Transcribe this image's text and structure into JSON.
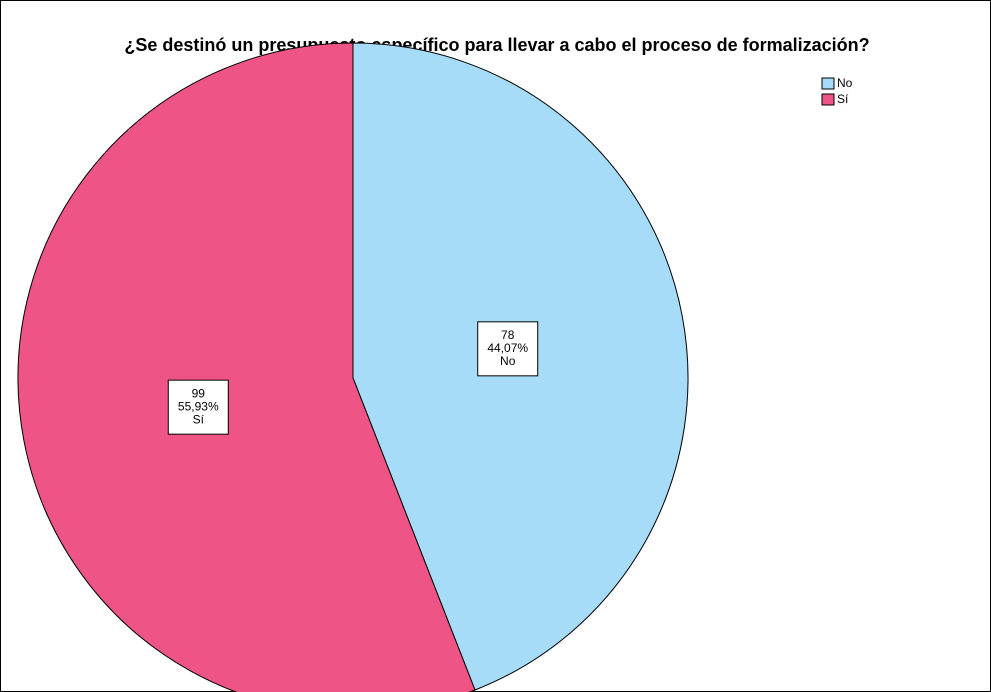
{
  "chart_data": {
    "type": "pie",
    "title": "¿Se destinó un presupuesto específico para llevar a cabo el proceso de formalización?",
    "categories": [
      "No",
      "Sí"
    ],
    "values": [
      78,
      99
    ],
    "percentages": [
      44.07,
      55.93
    ],
    "percentage_labels": [
      "44,07%",
      "55,93%"
    ],
    "colors": [
      "#a6dcf7",
      "#ef5486"
    ],
    "legend": "top-right"
  }
}
